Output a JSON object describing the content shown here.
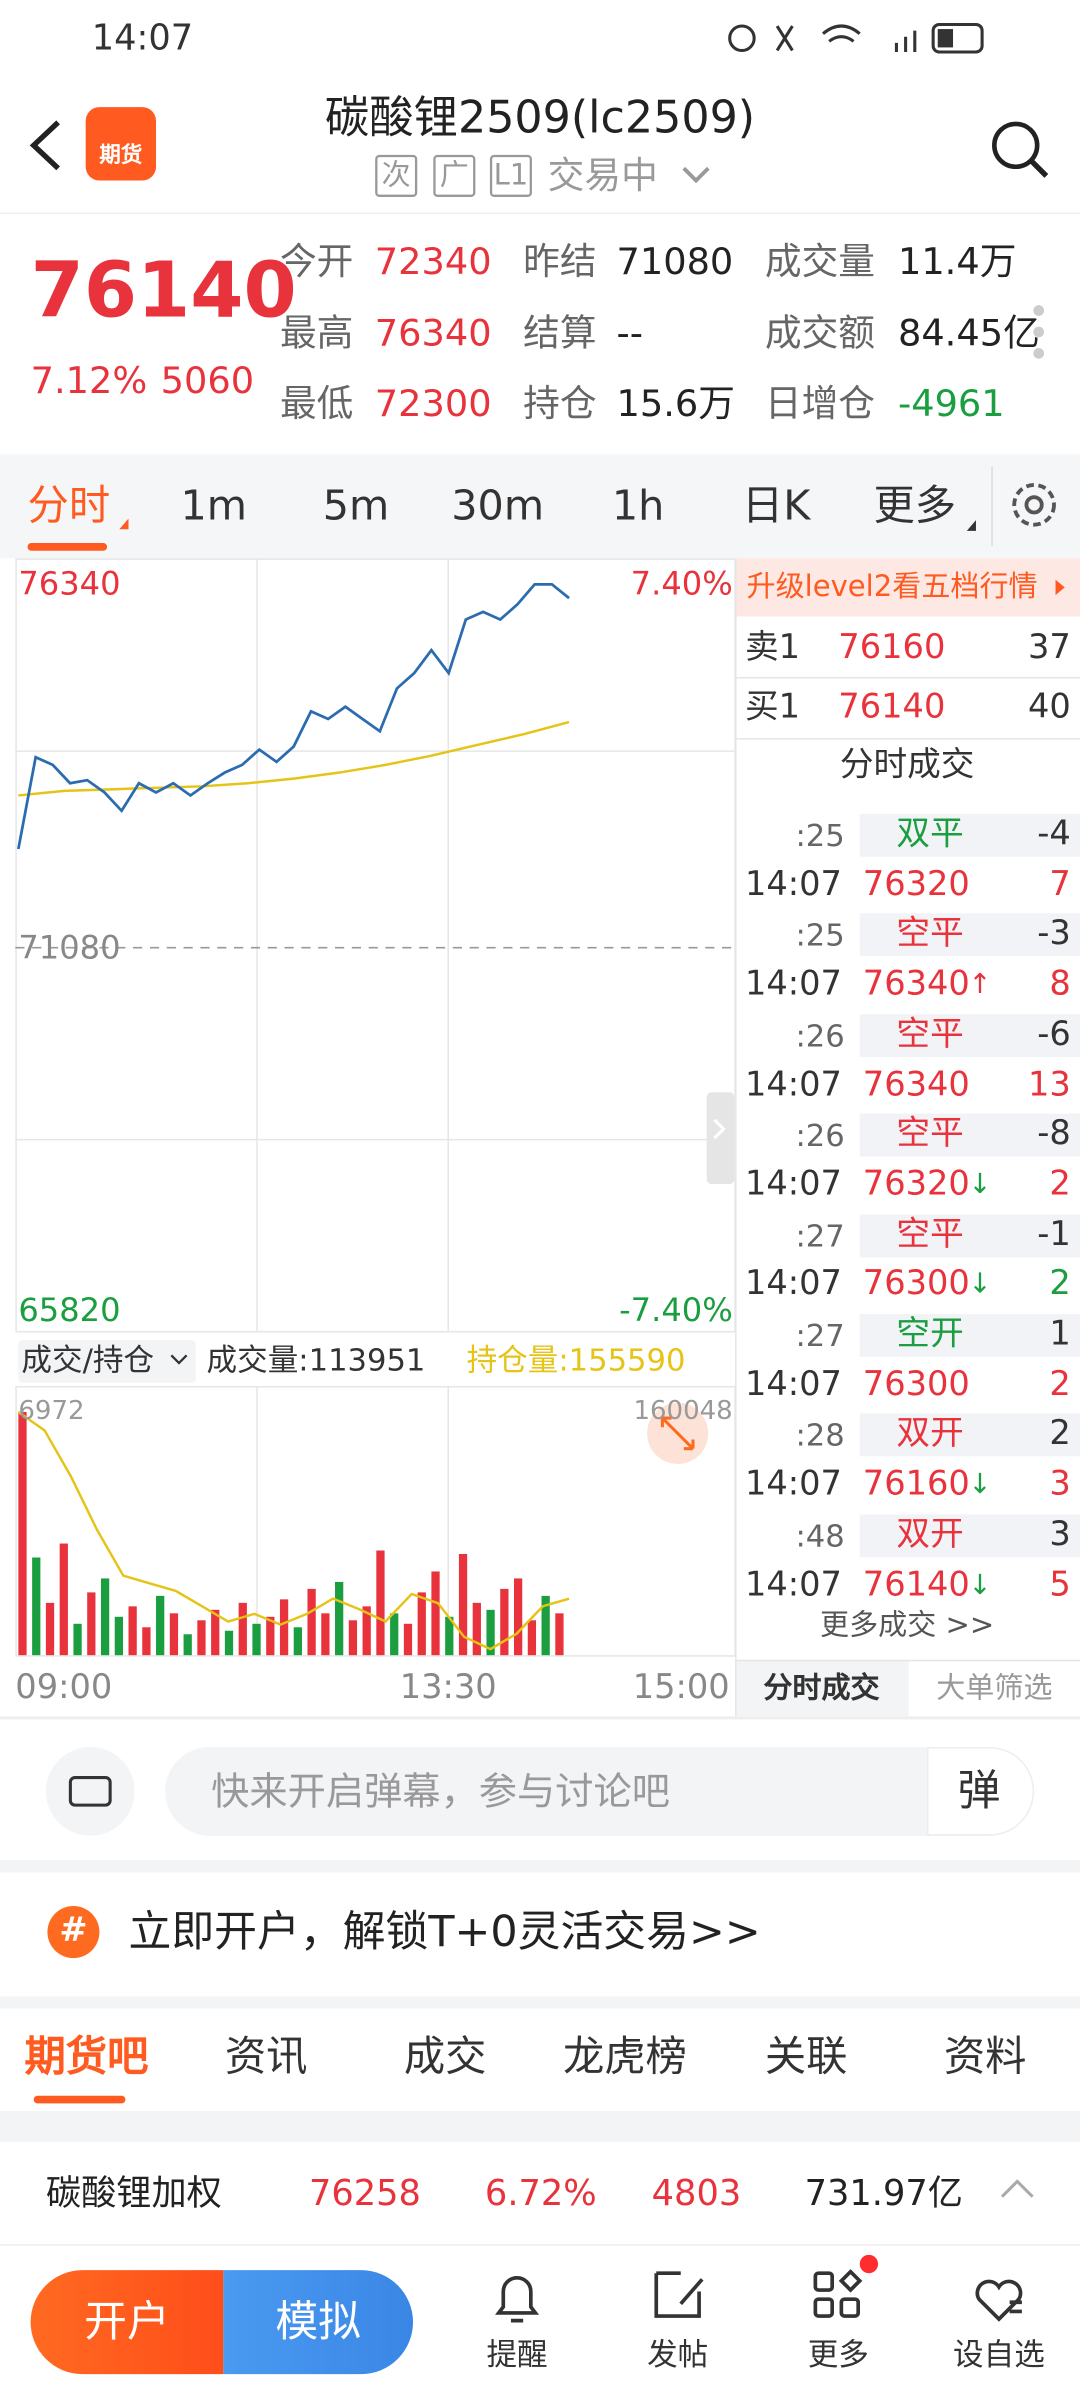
{
  "status": {
    "time": "14:07"
  },
  "header": {
    "logo": "期货",
    "title": "碳酸锂2509(lc2509)",
    "tags": [
      "次",
      "广",
      "L1"
    ],
    "state": "交易中"
  },
  "quote": {
    "price": "76140",
    "change_pct": "7.12%",
    "change": "5060",
    "fields": [
      {
        "label": "今开",
        "value": "72340",
        "color": "#e8323c"
      },
      {
        "label": "最高",
        "value": "76340",
        "color": "#e8323c"
      },
      {
        "label": "最低",
        "value": "72300",
        "color": "#e8323c"
      },
      {
        "label": "昨结",
        "value": "71080",
        "color": "#222222"
      },
      {
        "label": "结算",
        "value": "--",
        "color": "#222222"
      },
      {
        "label": "持仓",
        "value": "15.6万",
        "color": "#222222"
      },
      {
        "label": "成交量",
        "value": "11.4万",
        "color": "#222222"
      },
      {
        "label": "成交额",
        "value": "84.45亿",
        "color": "#222222"
      },
      {
        "label": "日增仓",
        "value": "-4961",
        "color": "#1a9e3f"
      }
    ]
  },
  "period_tabs": [
    "分时",
    "1m",
    "5m",
    "30m",
    "1h",
    "日K",
    "更多"
  ],
  "intraday": {
    "ylim": [
      65820,
      76340
    ],
    "yticks": [
      65820,
      71080,
      76340
    ],
    "pct_top": "7.40%",
    "pct_bottom": "-7.40%",
    "xticks": [
      "09:00",
      "13:30",
      "15:00"
    ],
    "price_color": "#2b6cb0",
    "avg_color": "#e6c317",
    "price": [
      72508,
      73837,
      73726,
      73460,
      73505,
      73328,
      73062,
      73460,
      73328,
      73460,
      73283,
      73460,
      73616,
      73726,
      73948,
      73771,
      73992,
      74502,
      74391,
      74568,
      74391,
      74214,
      74834,
      75055,
      75388,
      75055,
      75831,
      75941,
      75831,
      76052,
      76340,
      76340,
      76140
    ],
    "avg": [
      73283,
      73350,
      73372,
      73394,
      73416,
      73460,
      73527,
      73616,
      73726,
      73859,
      74014,
      74169,
      74346
    ]
  },
  "volume": {
    "selector": "成交/持仓",
    "volume_text": "成交量:113951",
    "oi_text": "持仓量:155590",
    "vol_max": 6972,
    "oi_max": 160048,
    "oi_color": "#e6c317",
    "values": [
      6972,
      2800,
      1500,
      3200,
      900,
      1800,
      2200,
      1100,
      1400,
      800,
      1700,
      1200,
      600,
      1000,
      1300,
      700,
      1500,
      900,
      1100,
      1600,
      800,
      1900,
      1200,
      2100,
      1000,
      1400,
      3000,
      1200,
      900,
      1800,
      2400,
      1100,
      2900,
      1500,
      1300,
      1900,
      2200,
      1000,
      1700,
      1200
    ],
    "colors": [
      "#e8323c",
      "#1a9e3f",
      "#e8323c",
      "#e8323c",
      "#1a9e3f",
      "#e8323c",
      "#1a9e3f",
      "#1a9e3f",
      "#e8323c",
      "#e8323c",
      "#1a9e3f",
      "#e8323c",
      "#1a9e3f",
      "#e8323c",
      "#e8323c",
      "#1a9e3f",
      "#e8323c",
      "#1a9e3f",
      "#e8323c",
      "#e8323c",
      "#1a9e3f",
      "#e8323c",
      "#e8323c",
      "#1a9e3f",
      "#e8323c",
      "#e8323c",
      "#e8323c",
      "#1a9e3f",
      "#e8323c",
      "#e8323c",
      "#e8323c",
      "#1a9e3f",
      "#e8323c",
      "#e8323c",
      "#1a9e3f",
      "#e8323c",
      "#e8323c",
      "#e8323c",
      "#1a9e3f",
      "#e8323c"
    ],
    "oi": [
      160048,
      159610,
      158515,
      157238,
      156143,
      155960,
      155778,
      155413,
      155048,
      155230,
      154974,
      155230,
      155595,
      155340,
      155048,
      155705,
      155485,
      154682,
      154390,
      154755,
      155413,
      155590
    ]
  },
  "panel": {
    "upgrade": "升级level2看五档行情",
    "book": [
      {
        "side": "卖1",
        "price": "76160",
        "qty": "37"
      },
      {
        "side": "买1",
        "price": "76140",
        "qty": "40"
      }
    ],
    "trades_title": "分时成交",
    "price_color": "#e8323c",
    "trades": [
      {
        "sec": ":25",
        "kind": "双平",
        "kind_color": "#1a9e3f",
        "qty": "-4"
      },
      {
        "time": "14:07",
        "price": "76320",
        "vol": "7",
        "vol_color": "#e8323c"
      },
      {
        "sec": ":25",
        "kind": "空平",
        "kind_color": "#e8323c",
        "qty": "-3"
      },
      {
        "time": "14:07",
        "price": "76340",
        "arrow": "↑",
        "arrow_color": "#e8323c",
        "vol": "8",
        "vol_color": "#e8323c"
      },
      {
        "sec": ":26",
        "kind": "空平",
        "kind_color": "#e8323c",
        "qty": "-6"
      },
      {
        "time": "14:07",
        "price": "76340",
        "vol": "13",
        "vol_color": "#e8323c"
      },
      {
        "sec": ":26",
        "kind": "空平",
        "kind_color": "#e8323c",
        "qty": "-8"
      },
      {
        "time": "14:07",
        "price": "76320",
        "arrow": "↓",
        "arrow_color": "#1a9e3f",
        "vol": "2",
        "vol_color": "#e8323c"
      },
      {
        "sec": ":27",
        "kind": "空平",
        "kind_color": "#e8323c",
        "qty": "-1"
      },
      {
        "time": "14:07",
        "price": "76300",
        "arrow": "↓",
        "arrow_color": "#1a9e3f",
        "vol": "2",
        "vol_color": "#1a9e3f"
      },
      {
        "sec": ":27",
        "kind": "空开",
        "kind_color": "#1a9e3f",
        "qty": "1"
      },
      {
        "time": "14:07",
        "price": "76300",
        "vol": "2",
        "vol_color": "#e8323c"
      },
      {
        "sec": ":28",
        "kind": "双开",
        "kind_color": "#e8323c",
        "qty": "2"
      },
      {
        "time": "14:07",
        "price": "76160",
        "arrow": "↓",
        "arrow_color": "#1a9e3f",
        "vol": "3",
        "vol_color": "#e8323c"
      },
      {
        "sec": ":48",
        "kind": "双开",
        "kind_color": "#e8323c",
        "qty": "3"
      },
      {
        "time": "14:07",
        "price": "76140",
        "arrow": "↓",
        "arrow_color": "#1a9e3f",
        "vol": "5",
        "vol_color": "#e8323c"
      }
    ],
    "more": "更多成交 >>",
    "tabs": [
      "分时成交",
      "大单筛选"
    ]
  },
  "comment": {
    "placeholder": "快来开启弹幕，参与讨论吧",
    "button": "弹"
  },
  "banner": {
    "icon": "#",
    "text": "立即开户，解锁T+0灵活交易>>"
  },
  "section_tabs": [
    "期货吧",
    "资讯",
    "成交",
    "龙虎榜",
    "关联",
    "资料"
  ],
  "ticker": {
    "name": "碳酸锂加权",
    "price": "76258",
    "change_pct": "6.72%",
    "change": "4803",
    "amount": "731.97亿"
  },
  "nav": {
    "open": "开户",
    "simulate": "模拟",
    "items": [
      "提醒",
      "发帖",
      "更多",
      "设自选"
    ]
  }
}
